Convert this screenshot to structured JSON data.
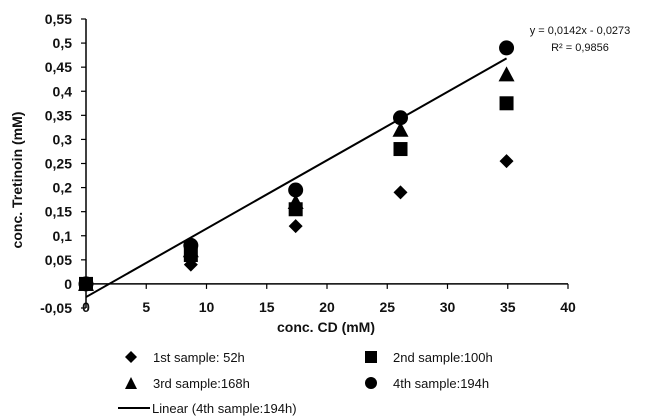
{
  "chart_data": {
    "type": "scatter",
    "xlabel": "conc. CD (mM)",
    "ylabel": "conc. Tretinoin (mM)",
    "xlim": [
      0,
      40
    ],
    "ylim": [
      -0.05,
      0.55
    ],
    "x_ticks": [
      "0",
      "5",
      "10",
      "15",
      "20",
      "25",
      "30",
      "35",
      "40"
    ],
    "y_ticks": [
      "-0,05",
      "0",
      "0,05",
      "0,1",
      "0,15",
      "0,2",
      "0,25",
      "0,3",
      "0,35",
      "0,4",
      "0,45",
      "0,5",
      "0,55"
    ],
    "grid": false,
    "legend_position": "bottom",
    "series": [
      {
        "name": "1st sample: 52h",
        "marker": "diamond",
        "color": "#000000",
        "points": [
          [
            0,
            0.0
          ],
          [
            8.7,
            0.04
          ],
          [
            17.4,
            0.12
          ],
          [
            26.1,
            0.19
          ],
          [
            34.9,
            0.255
          ]
        ]
      },
      {
        "name": "2nd sample:100h",
        "marker": "square",
        "color": "#000000",
        "points": [
          [
            0,
            0.0
          ],
          [
            8.7,
            0.06
          ],
          [
            17.4,
            0.155
          ],
          [
            26.1,
            0.28
          ],
          [
            34.9,
            0.375
          ]
        ]
      },
      {
        "name": "3rd sample:168h",
        "marker": "triangle",
        "color": "#000000",
        "points": [
          [
            0,
            0.0
          ],
          [
            8.7,
            0.07
          ],
          [
            17.4,
            0.17
          ],
          [
            26.1,
            0.32
          ],
          [
            34.9,
            0.435
          ]
        ]
      },
      {
        "name": "4th sample:194h",
        "marker": "circle",
        "color": "#000000",
        "points": [
          [
            0,
            0.0
          ],
          [
            8.7,
            0.08
          ],
          [
            17.4,
            0.195
          ],
          [
            26.1,
            0.345
          ],
          [
            34.9,
            0.49
          ]
        ]
      }
    ],
    "trendline": {
      "name": "Linear (4th sample:194h)",
      "slope": 0.0142,
      "intercept": -0.0273,
      "x_range": [
        0,
        34.9
      ],
      "equation": "y = 0,0142x - 0,0273",
      "r2": "R² = 0,9856"
    }
  }
}
